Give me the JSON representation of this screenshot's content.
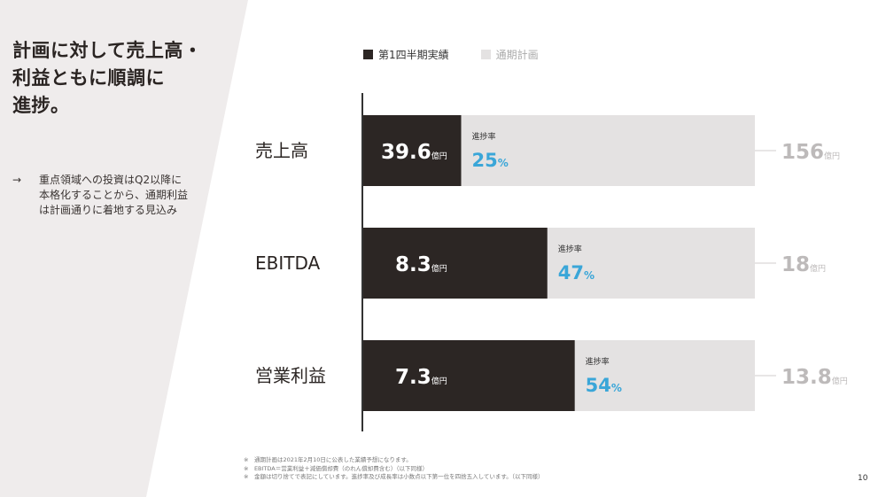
{
  "slide": {
    "headline_lines": [
      "計画に対して売上高・",
      "利益ともに順調に",
      "進捗。"
    ],
    "bullet_arrow": "→",
    "bullet_text": "重点領域への投資はQ2以降に本格化することから、通期利益は計画通りに着地する見込み",
    "page_number": "10",
    "footnotes": [
      "※　通期計画は2021年2月10日に公表した業績予想になります。",
      "※　EBITDA＝営業利益＋減価償却費（のれん償却費含む）（以下同様）",
      "※　金額は切り捨てで表記にしています。進捗率及び成長率は小数点以下第一位を四捨五入しています。（以下同様）"
    ]
  },
  "chart_data": {
    "type": "bar",
    "orientation": "horizontal",
    "categories": [
      "売上高",
      "EBITDA",
      "営業利益"
    ],
    "series": [
      {
        "name": "第1四半期実績",
        "values": [
          39.6,
          8.3,
          7.3
        ],
        "labels": [
          "39.6",
          "8.3",
          "7.3"
        ],
        "color": "#2c2624"
      },
      {
        "name": "通期計画",
        "values": [
          156,
          18,
          13.8
        ],
        "labels": [
          "156",
          "18",
          "13.8"
        ],
        "color": "#e4e2e2"
      }
    ],
    "progress": {
      "label": "進捗率",
      "values": [
        25,
        47,
        54
      ],
      "unit": "%",
      "color": "#3aa6d8"
    },
    "unit": "億円"
  }
}
